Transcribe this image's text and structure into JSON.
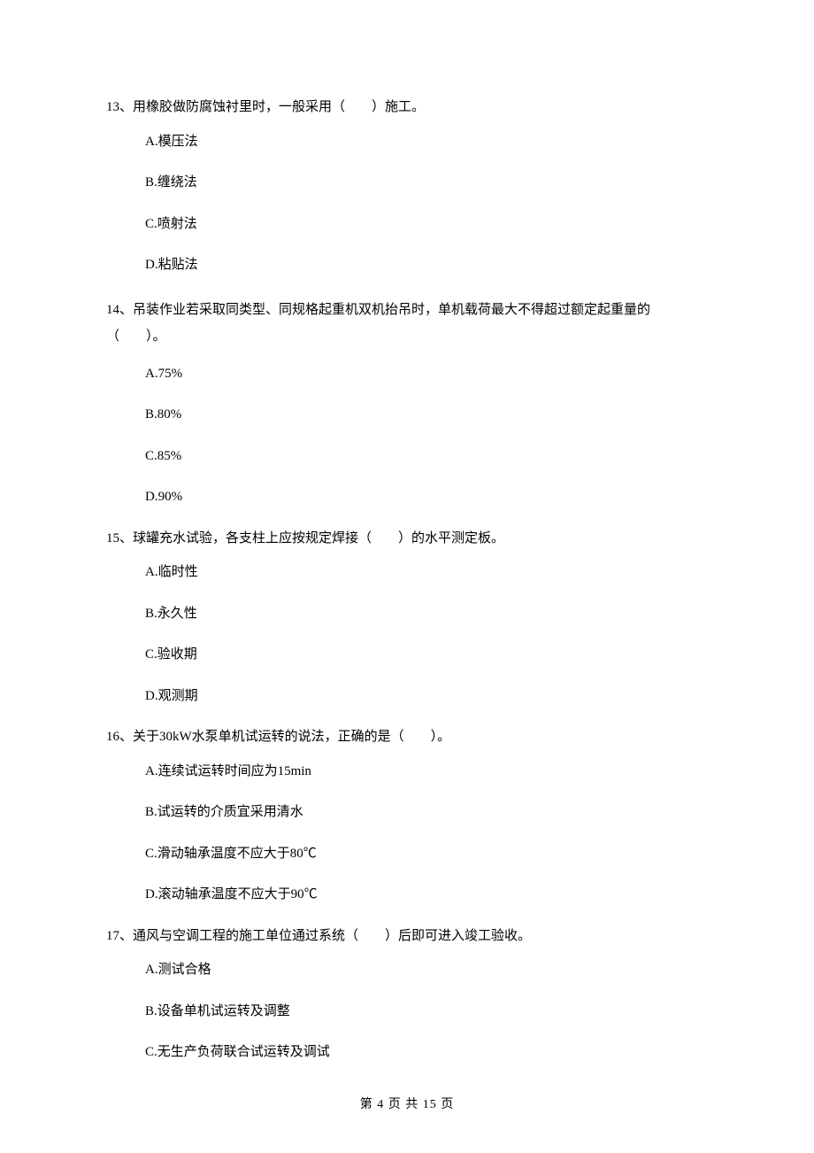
{
  "questions": [
    {
      "number": "13",
      "stem": "13、用橡胶做防腐蚀衬里时，一般采用（　　）施工。",
      "options": [
        "A.模压法",
        "B.缠绕法",
        "C.喷射法",
        "D.粘贴法"
      ]
    },
    {
      "number": "14",
      "stem": "14、吊装作业若采取同类型、同规格起重机双机抬吊时，单机载荷最大不得超过额定起重量的（　　）。",
      "options": [
        "A.75%",
        "B.80%",
        "C.85%",
        "D.90%"
      ]
    },
    {
      "number": "15",
      "stem": "15、球罐充水试验，各支柱上应按规定焊接（　　）的水平测定板。",
      "options": [
        "A.临时性",
        "B.永久性",
        "C.验收期",
        "D.观测期"
      ]
    },
    {
      "number": "16",
      "stem": "16、关于30kW水泵单机试运转的说法，正确的是（　　）。",
      "options": [
        "A.连续试运转时间应为15min",
        "B.试运转的介质宜采用清水",
        "C.滑动轴承温度不应大于80℃",
        "D.滚动轴承温度不应大于90℃"
      ]
    },
    {
      "number": "17",
      "stem": "17、通风与空调工程的施工单位通过系统（　　）后即可进入竣工验收。",
      "options": [
        "A.测试合格",
        "B.设备单机试运转及调整",
        "C.无生产负荷联合试运转及调试"
      ]
    }
  ],
  "footer": "第 4 页 共 15 页"
}
